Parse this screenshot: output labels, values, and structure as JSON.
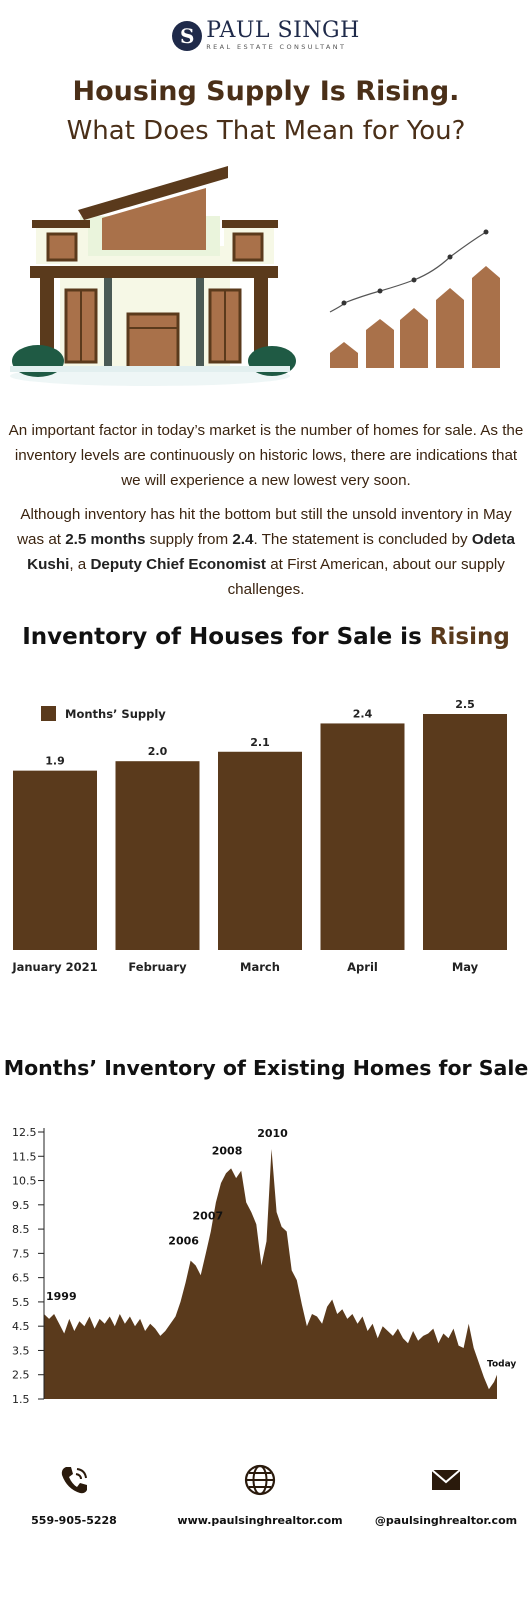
{
  "brand": {
    "initial": "S",
    "name": "PAUL SINGH",
    "tagline": "REAL ESTATE CONSULTANT",
    "colors": {
      "navy": "#1f2a4a",
      "brown": "#5a3a1c",
      "text_brown": "#4a2f18"
    }
  },
  "headline": {
    "line1": "Housing Supply Is Rising.",
    "line2": "What Does That Mean for You?"
  },
  "paragraphs": {
    "p1": "An important factor in today’s market is the number of homes for sale. As the inventory levels are continuously on historic lows, there are indications that we will experience a new lowest very soon.",
    "p2": {
      "a": "Although inventory has hit the bottom but still the unsold inventory in May was at ",
      "b": "2.5 months",
      "c": " supply from ",
      "d": "2.4",
      "e": ". The statement is concluded by ",
      "f": "Odeta Kushi",
      "g": ", a ",
      "h": "Deputy Chief Economist",
      "i": " at First American, about our supply challenges."
    }
  },
  "chart1": {
    "title_main": "Inventory of Houses for Sale is",
    "title_accent": "Rising"
  },
  "chart2": {
    "title": "Months’ Inventory of Existing Homes for Sale"
  },
  "chart_data": [
    {
      "type": "bar",
      "title": "Inventory of Houses for Sale is Rising",
      "categories": [
        "January 2021",
        "February",
        "March",
        "April",
        "May"
      ],
      "series": [
        {
          "name": "Months’ Supply",
          "values": [
            1.9,
            2.0,
            2.1,
            2.4,
            2.5
          ]
        }
      ],
      "data_labels": [
        "1.9",
        "2.0",
        "2.1",
        "2.4",
        "2.5"
      ],
      "legend": "top-left",
      "grid": false,
      "color": "#5a3a1c"
    },
    {
      "type": "area",
      "title": "Months’ Inventory of Existing Homes for Sale",
      "yticks": [
        "1.5",
        "2.5",
        "3.5",
        "4.5",
        "5.5",
        "6.5",
        "7.5",
        "8.5",
        "9.5",
        "10.5",
        "11.5",
        "12.5"
      ],
      "ylim": [
        1.5,
        12.5
      ],
      "grid": false,
      "color": "#5a3a1c",
      "points": [
        [
          1999.0,
          5.0
        ],
        [
          1999.25,
          4.8
        ],
        [
          1999.5,
          5.0
        ],
        [
          1999.75,
          4.6
        ],
        [
          2000.0,
          4.2
        ],
        [
          2000.25,
          4.8
        ],
        [
          2000.5,
          4.3
        ],
        [
          2000.75,
          4.7
        ],
        [
          2001.0,
          4.5
        ],
        [
          2001.25,
          4.9
        ],
        [
          2001.5,
          4.4
        ],
        [
          2001.75,
          4.8
        ],
        [
          2002.0,
          4.6
        ],
        [
          2002.25,
          4.9
        ],
        [
          2002.5,
          4.5
        ],
        [
          2002.75,
          5.0
        ],
        [
          2003.0,
          4.6
        ],
        [
          2003.25,
          4.9
        ],
        [
          2003.5,
          4.5
        ],
        [
          2003.75,
          4.8
        ],
        [
          2004.0,
          4.3
        ],
        [
          2004.25,
          4.6
        ],
        [
          2004.5,
          4.4
        ],
        [
          2004.75,
          4.1
        ],
        [
          2005.0,
          4.3
        ],
        [
          2005.25,
          4.6
        ],
        [
          2005.5,
          4.9
        ],
        [
          2005.75,
          5.5
        ],
        [
          2006.0,
          6.3
        ],
        [
          2006.25,
          7.2
        ],
        [
          2006.5,
          7.0
        ],
        [
          2006.75,
          6.6
        ],
        [
          2007.0,
          7.5
        ],
        [
          2007.25,
          8.4
        ],
        [
          2007.5,
          9.6
        ],
        [
          2007.75,
          10.4
        ],
        [
          2008.0,
          10.8
        ],
        [
          2008.25,
          11.0
        ],
        [
          2008.5,
          10.6
        ],
        [
          2008.75,
          10.9
        ],
        [
          2009.0,
          9.6
        ],
        [
          2009.25,
          9.2
        ],
        [
          2009.5,
          8.7
        ],
        [
          2009.75,
          7.0
        ],
        [
          2010.0,
          8.0
        ],
        [
          2010.25,
          11.8
        ],
        [
          2010.5,
          9.2
        ],
        [
          2010.75,
          8.6
        ],
        [
          2011.0,
          8.4
        ],
        [
          2011.25,
          6.8
        ],
        [
          2011.5,
          6.4
        ],
        [
          2011.75,
          5.4
        ],
        [
          2012.0,
          4.5
        ],
        [
          2012.25,
          5.0
        ],
        [
          2012.5,
          4.9
        ],
        [
          2012.75,
          4.6
        ],
        [
          2013.0,
          5.3
        ],
        [
          2013.25,
          5.6
        ],
        [
          2013.5,
          5.0
        ],
        [
          2013.75,
          5.2
        ],
        [
          2014.0,
          4.8
        ],
        [
          2014.25,
          5.0
        ],
        [
          2014.5,
          4.6
        ],
        [
          2014.75,
          4.9
        ],
        [
          2015.0,
          4.3
        ],
        [
          2015.25,
          4.6
        ],
        [
          2015.5,
          4.0
        ],
        [
          2015.75,
          4.5
        ],
        [
          2016.0,
          4.3
        ],
        [
          2016.25,
          4.1
        ],
        [
          2016.5,
          4.4
        ],
        [
          2016.75,
          4.0
        ],
        [
          2017.0,
          3.8
        ],
        [
          2017.25,
          4.3
        ],
        [
          2017.5,
          3.9
        ],
        [
          2017.75,
          4.1
        ],
        [
          2018.0,
          4.2
        ],
        [
          2018.25,
          4.4
        ],
        [
          2018.5,
          3.8
        ],
        [
          2018.75,
          4.2
        ],
        [
          2019.0,
          4.0
        ],
        [
          2019.25,
          4.4
        ],
        [
          2019.5,
          3.7
        ],
        [
          2019.75,
          3.6
        ],
        [
          2020.0,
          4.6
        ],
        [
          2020.25,
          3.6
        ],
        [
          2020.5,
          3.0
        ],
        [
          2020.75,
          2.4
        ],
        [
          2021.0,
          1.9
        ],
        [
          2021.25,
          2.2
        ],
        [
          2021.4,
          2.5
        ]
      ],
      "annotations": [
        {
          "label": "1999",
          "x": 1999.0,
          "y": 5.0
        },
        {
          "label": "2006",
          "x": 2006.25,
          "y": 7.2
        },
        {
          "label": "2007",
          "x": 2007.25,
          "y": 8.4
        },
        {
          "label": "2008",
          "x": 2008.25,
          "y": 11.0
        },
        {
          "label": "2010",
          "x": 2010.25,
          "y": 11.8
        },
        {
          "label": "Today",
          "x": 2021.4,
          "y": 2.5
        }
      ]
    }
  ],
  "footer": {
    "phone": "559-905-5228",
    "website": "www.paulsinghrealtor.com",
    "social": "@paulsinghrealtor.com"
  }
}
